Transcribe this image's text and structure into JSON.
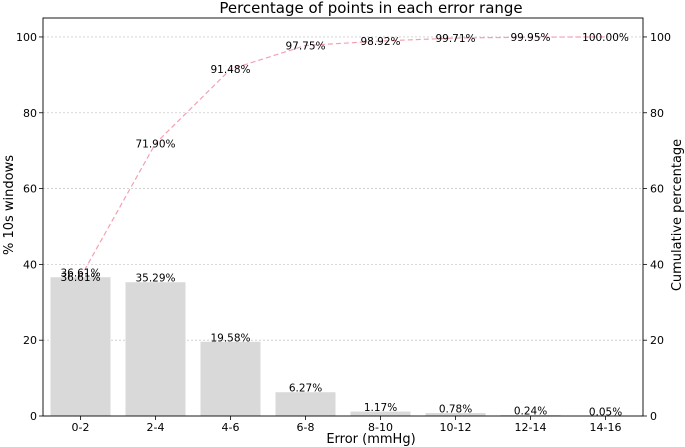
{
  "chart_data": {
    "type": "bar",
    "title": "Percentage of points in each error range",
    "xlabel": "Error (mmHg)",
    "ylabel": "% 10s windows",
    "y2label": "Cumulative percentage",
    "categories": [
      "0-2",
      "2-4",
      "4-6",
      "6-8",
      "8-10",
      "10-12",
      "12-14",
      "14-16"
    ],
    "series": [
      {
        "values": [
          36.61,
          35.29,
          19.58,
          6.27,
          1.17,
          0.78,
          0.24,
          0.05
        ],
        "labels": [
          "36.61%",
          "35.29%",
          "19.58%",
          "6.27%",
          "1.17%",
          "0.78%",
          "0.24%",
          "0.05%"
        ],
        "color": "#d9d9d9",
        "axis": "left"
      },
      {
        "type": "line",
        "values": [
          36.61,
          71.9,
          91.48,
          97.75,
          98.92,
          99.71,
          99.95,
          100.0
        ],
        "labels": [
          "36.61%",
          "71.90%",
          "91.48%",
          "97.75%",
          "98.92%",
          "99.71%",
          "99.95%",
          "100.00%"
        ],
        "color": "#f4a0b0",
        "linestyle": "dashed",
        "axis": "right"
      }
    ],
    "ylim": [
      0,
      105
    ],
    "y2lim": [
      0,
      105
    ],
    "yticks": [
      "0",
      "20",
      "40",
      "60",
      "80",
      "100"
    ],
    "grid": "horizontal dotted"
  }
}
